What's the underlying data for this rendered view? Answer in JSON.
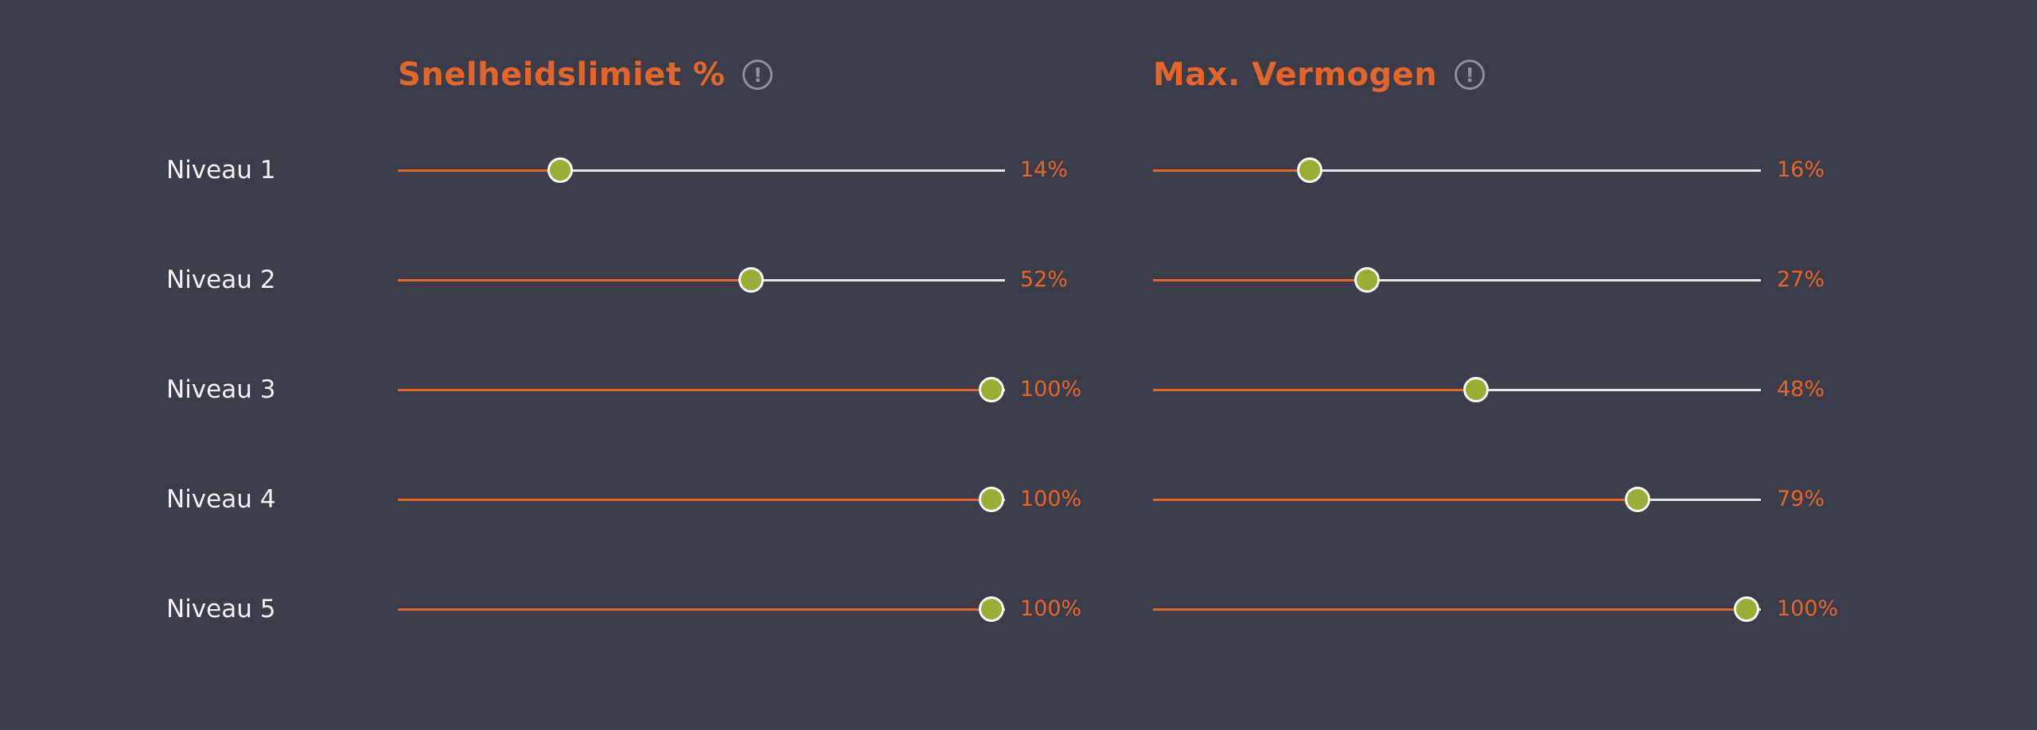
{
  "colors": {
    "background": "#3b3e4a",
    "accent": "#e2652b",
    "track": "#e6e6e6",
    "thumb": "#9aae35"
  },
  "columns": [
    {
      "title": "Snelheidslimiet %",
      "info_icon": "info-icon"
    },
    {
      "title": "Max. Vermogen",
      "info_icon": "info-icon"
    }
  ],
  "rows": [
    {
      "label": "Niveau 1",
      "speed_limit": {
        "value": 14,
        "text": "14%"
      },
      "max_power": {
        "value": 16,
        "text": "16%"
      }
    },
    {
      "label": "Niveau 2",
      "speed_limit": {
        "value": 52,
        "text": "52%"
      },
      "max_power": {
        "value": 27,
        "text": "27%"
      }
    },
    {
      "label": "Niveau 3",
      "speed_limit": {
        "value": 100,
        "text": "100%"
      },
      "max_power": {
        "value": 48,
        "text": "48%"
      }
    },
    {
      "label": "Niveau 4",
      "speed_limit": {
        "value": 100,
        "text": "100%"
      },
      "max_power": {
        "value": 79,
        "text": "79%"
      }
    },
    {
      "label": "Niveau 5",
      "speed_limit": {
        "value": 100,
        "text": "100%"
      },
      "max_power": {
        "value": 100,
        "text": "100%"
      }
    }
  ]
}
